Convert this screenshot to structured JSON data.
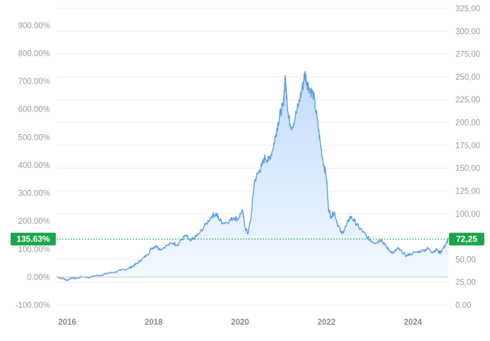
{
  "chart_data": {
    "type": "area",
    "x_ticks": [
      "2016",
      "2018",
      "2020",
      "2022",
      "2024"
    ],
    "left_axis": {
      "unit": "percent change",
      "ylim": [
        -100,
        950
      ],
      "ticks": [
        "-100.00%",
        "0.00%",
        "100.00%",
        "200.00%",
        "300.00%",
        "400.00%",
        "500.00%",
        "600.00%",
        "700.00%",
        "800.00%",
        "900.00%"
      ]
    },
    "right_axis": {
      "unit": "price",
      "ylim": [
        0,
        325
      ],
      "ticks": [
        "0,00",
        "25,00",
        "50,00",
        "75,00",
        "100,00",
        "125,00",
        "150,00",
        "175,00",
        "200,00",
        "225,00",
        "250,00",
        "275,00",
        "300,00",
        "325,00"
      ]
    },
    "baseline_price": 30.66,
    "current": {
      "percent_label": "135.63%",
      "price_label": "72,25",
      "price": 72.25
    },
    "grid": true,
    "colors": {
      "line": "#5b9ee6",
      "fill_top": "#c2dcfb",
      "fill_bottom": "#f4f9ff",
      "badge": "#1aa64b",
      "grid": "#ececec"
    },
    "series": [
      {
        "values": [
          [
            "2015.75",
            31
          ],
          [
            "2015.9",
            29
          ],
          [
            "2016.0",
            27
          ],
          [
            "2016.1",
            30
          ],
          [
            "2016.2",
            29
          ],
          [
            "2016.35",
            31
          ],
          [
            "2016.5",
            30
          ],
          [
            "2016.65",
            32
          ],
          [
            "2016.8",
            33
          ],
          [
            "2016.95",
            35
          ],
          [
            "2017.1",
            36
          ],
          [
            "2017.25",
            38
          ],
          [
            "2017.4",
            40
          ],
          [
            "2017.5",
            42
          ],
          [
            "2017.6",
            45
          ],
          [
            "2017.7",
            49
          ],
          [
            "2017.85",
            55
          ],
          [
            "2017.95",
            62
          ],
          [
            "2018.05",
            65
          ],
          [
            "2018.15",
            61
          ],
          [
            "2018.3",
            65
          ],
          [
            "2018.45",
            68
          ],
          [
            "2018.55",
            66
          ],
          [
            "2018.65",
            72
          ],
          [
            "2018.75",
            76
          ],
          [
            "2018.85",
            70
          ],
          [
            "2018.95",
            74
          ],
          [
            "2019.05",
            78
          ],
          [
            "2019.2",
            88
          ],
          [
            "2019.35",
            98
          ],
          [
            "2019.45",
            100
          ],
          [
            "2019.5",
            95
          ],
          [
            "2019.6",
            90
          ],
          [
            "2019.75",
            92
          ],
          [
            "2019.85",
            96
          ],
          [
            "2019.95",
            94
          ],
          [
            "2020.05",
            104
          ],
          [
            "2020.12",
            85
          ],
          [
            "2020.18",
            78
          ],
          [
            "2020.25",
            95
          ],
          [
            "2020.33",
            135
          ],
          [
            "2020.42",
            145
          ],
          [
            "2020.5",
            152
          ],
          [
            "2020.58",
            162
          ],
          [
            "2020.66",
            158
          ],
          [
            "2020.75",
            170
          ],
          [
            "2020.82",
            185
          ],
          [
            "2020.88",
            200
          ],
          [
            "2020.94",
            212
          ],
          [
            "2021.0",
            218
          ],
          [
            "2021.04",
            250
          ],
          [
            "2021.08",
            230
          ],
          [
            "2021.12",
            205
          ],
          [
            "2021.2",
            195
          ],
          [
            "2021.3",
            210
          ],
          [
            "2021.38",
            225
          ],
          [
            "2021.45",
            240
          ],
          [
            "2021.5",
            254
          ],
          [
            "2021.55",
            244
          ],
          [
            "2021.62",
            236
          ],
          [
            "2021.7",
            230
          ],
          [
            "2021.78",
            205
          ],
          [
            "2021.85",
            180
          ],
          [
            "2021.92",
            158
          ],
          [
            "2022.0",
            140
          ],
          [
            "2022.04",
            108
          ],
          [
            "2022.1",
            97
          ],
          [
            "2022.18",
            102
          ],
          [
            "2022.25",
            90
          ],
          [
            "2022.35",
            78
          ],
          [
            "2022.45",
            86
          ],
          [
            "2022.55",
            97
          ],
          [
            "2022.65",
            92
          ],
          [
            "2022.75",
            85
          ],
          [
            "2022.85",
            80
          ],
          [
            "2022.95",
            74
          ],
          [
            "2023.05",
            70
          ],
          [
            "2023.15",
            68
          ],
          [
            "2023.25",
            72
          ],
          [
            "2023.35",
            66
          ],
          [
            "2023.45",
            60
          ],
          [
            "2023.55",
            57
          ],
          [
            "2023.65",
            62
          ],
          [
            "2023.75",
            58
          ],
          [
            "2023.85",
            54
          ],
          [
            "2023.95",
            56
          ],
          [
            "2024.1",
            58
          ],
          [
            "2024.25",
            60
          ],
          [
            "2024.35",
            62
          ],
          [
            "2024.45",
            58
          ],
          [
            "2024.55",
            61
          ],
          [
            "2024.62",
            57
          ],
          [
            "2024.7",
            62
          ],
          [
            "2024.78",
            68
          ],
          [
            "2024.82",
            72.25
          ]
        ]
      }
    ]
  }
}
